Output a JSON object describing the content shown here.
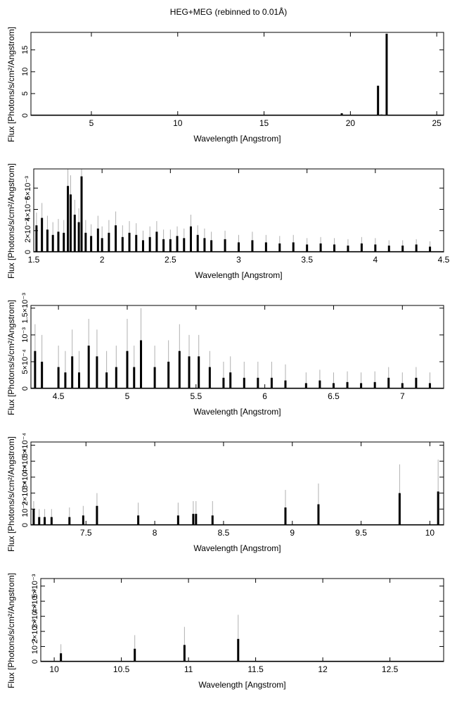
{
  "chart_data": [
    {
      "type": "bar",
      "title": "HEG+MEG (rebinned to 0.01Å)",
      "xlabel": "Wavelength [Angstrom]",
      "ylabel": "Flux [Photons/s/cm²/Angstrom]",
      "xlim": [
        1.5,
        25.4
      ],
      "ylim": [
        0,
        19
      ],
      "xticks": [
        5,
        10,
        15,
        20,
        25
      ],
      "yticks": [
        0,
        5,
        10,
        15
      ],
      "ytick_labels": [
        "0",
        "5",
        "10",
        "15"
      ],
      "x": [
        19.5,
        21.6,
        21.8,
        22.1
      ],
      "values": [
        0.5,
        6.8,
        0.2,
        18.7
      ],
      "errors": [
        0,
        0,
        0,
        0
      ]
    },
    {
      "type": "bar",
      "xlabel": "Wavelength [Angstrom]",
      "ylabel": "Flux [Photons/s/cm²/Angstrom]",
      "xlim": [
        1.5,
        4.5
      ],
      "ylim": [
        0,
        0.0078
      ],
      "xticks": [
        1.5,
        2,
        2.5,
        3,
        3.5,
        4,
        4.5
      ],
      "yticks": [
        0,
        0.002,
        0.004,
        0.006
      ],
      "ytick_labels": [
        "0",
        "2×10⁻³",
        "4×10⁻³",
        "6×10⁻³"
      ],
      "x": [
        1.52,
        1.56,
        1.6,
        1.64,
        1.68,
        1.72,
        1.75,
        1.77,
        1.8,
        1.83,
        1.85,
        1.88,
        1.92,
        1.97,
        2.0,
        2.05,
        2.1,
        2.15,
        2.2,
        2.25,
        2.3,
        2.35,
        2.4,
        2.45,
        2.5,
        2.55,
        2.6,
        2.65,
        2.7,
        2.75,
        2.8,
        2.9,
        3.0,
        3.1,
        3.2,
        3.3,
        3.4,
        3.5,
        3.6,
        3.7,
        3.8,
        3.9,
        4.0,
        4.1,
        4.2,
        4.3,
        4.4
      ],
      "values": [
        0.0025,
        0.0032,
        0.0021,
        0.0016,
        0.0019,
        0.0018,
        0.0062,
        0.0054,
        0.0035,
        0.0028,
        0.0071,
        0.0018,
        0.0015,
        0.0022,
        0.0013,
        0.0018,
        0.0025,
        0.0014,
        0.0018,
        0.0016,
        0.0011,
        0.0014,
        0.0019,
        0.0012,
        0.0012,
        0.0015,
        0.0013,
        0.0024,
        0.0016,
        0.0013,
        0.0011,
        0.0012,
        0.0009,
        0.0011,
        0.0009,
        0.0008,
        0.0009,
        0.0007,
        0.0008,
        0.0007,
        0.0006,
        0.0008,
        0.0007,
        0.0006,
        0.0006,
        0.0007,
        0.0005
      ],
      "errors": [
        0.0012,
        0.0014,
        0.0013,
        0.0012,
        0.0012,
        0.0012,
        0.0016,
        0.0018,
        0.0014,
        0.0013,
        0.0017,
        0.0012,
        0.0011,
        0.0012,
        0.0011,
        0.0012,
        0.0013,
        0.0011,
        0.0011,
        0.0011,
        0.0009,
        0.001,
        0.001,
        0.0009,
        0.0009,
        0.0009,
        0.0009,
        0.0011,
        0.0009,
        0.0009,
        0.0008,
        0.0008,
        0.0007,
        0.0008,
        0.0007,
        0.0007,
        0.0007,
        0.0006,
        0.0006,
        0.0006,
        0.0006,
        0.0006,
        0.0006,
        0.0005,
        0.0005,
        0.0005,
        0.0005
      ]
    },
    {
      "type": "bar",
      "xlabel": "Wavelength [Angstrom]",
      "ylabel": "Flux [Photons/s/cm²/Angstrom]",
      "xlim": [
        4.3,
        7.3
      ],
      "ylim": [
        0,
        0.00155
      ],
      "xticks": [
        4.5,
        5,
        5.5,
        6,
        6.5,
        7
      ],
      "yticks": [
        0,
        0.0005,
        0.001,
        0.0015
      ],
      "ytick_labels": [
        "0",
        "5×10⁻⁴",
        "10⁻³",
        "1.5×10⁻³"
      ],
      "x": [
        4.33,
        4.38,
        4.5,
        4.55,
        4.6,
        4.65,
        4.72,
        4.78,
        4.85,
        4.92,
        5.0,
        5.05,
        5.1,
        5.2,
        5.3,
        5.38,
        5.45,
        5.52,
        5.6,
        5.7,
        5.75,
        5.85,
        5.95,
        6.05,
        6.15,
        6.3,
        6.4,
        6.5,
        6.6,
        6.7,
        6.8,
        6.9,
        7.0,
        7.1,
        7.2
      ],
      "values": [
        0.0007,
        0.0005,
        0.0004,
        0.0003,
        0.0006,
        0.0003,
        0.0008,
        0.0006,
        0.0003,
        0.0004,
        0.0007,
        0.0004,
        0.0009,
        0.0004,
        0.0005,
        0.0007,
        0.0006,
        0.0006,
        0.0004,
        0.0002,
        0.0003,
        0.0002,
        0.0002,
        0.0002,
        0.00015,
        0.0001,
        0.00015,
        0.0001,
        0.00012,
        0.0001,
        0.00012,
        0.0002,
        0.0001,
        0.0002,
        0.0001
      ],
      "errors": [
        0.0005,
        0.0005,
        0.0004,
        0.0004,
        0.0005,
        0.0004,
        0.0005,
        0.0005,
        0.0004,
        0.0004,
        0.0006,
        0.0004,
        0.0006,
        0.0004,
        0.0004,
        0.0005,
        0.0004,
        0.0004,
        0.0003,
        0.0003,
        0.0003,
        0.0003,
        0.0003,
        0.0003,
        0.0003,
        0.0002,
        0.0002,
        0.0002,
        0.0002,
        0.0002,
        0.0002,
        0.0002,
        0.0002,
        0.0002,
        0.0002
      ]
    },
    {
      "type": "bar",
      "xlabel": "Wavelength [Angstrom]",
      "ylabel": "Flux [Photons/s/cm²/Angstrom]",
      "xlim": [
        7.1,
        10.1
      ],
      "ylim": [
        0,
        0.00052
      ],
      "xticks": [
        7.5,
        8,
        8.5,
        9,
        9.5,
        10
      ],
      "yticks": [
        0,
        0.0001,
        0.0002,
        0.0003,
        0.0004,
        0.0005
      ],
      "ytick_labels": [
        "0",
        "10⁻⁴",
        "2×10⁻⁴",
        "3×10⁻⁴",
        "4×10⁻⁴",
        "5×10⁻⁴"
      ],
      "x": [
        7.12,
        7.16,
        7.2,
        7.25,
        7.38,
        7.48,
        7.58,
        7.88,
        8.17,
        8.28,
        8.3,
        8.42,
        8.95,
        9.19,
        9.78,
        10.06
      ],
      "values": [
        0.0001,
        5e-05,
        5e-05,
        5e-05,
        5e-05,
        6e-05,
        0.00012,
        6e-05,
        6e-05,
        7e-05,
        7e-05,
        6e-05,
        0.00011,
        0.00013,
        0.0002,
        0.00021
      ],
      "errors": [
        5e-05,
        5e-05,
        5e-05,
        5e-05,
        6e-05,
        6e-05,
        8e-05,
        8e-05,
        8e-05,
        8e-05,
        8e-05,
        9e-05,
        0.00011,
        0.00013,
        0.00018,
        0.0002
      ]
    },
    {
      "type": "bar",
      "xlabel": "Wavelength [Angstrom]",
      "ylabel": "Flux [Photons/s/cm²/Angstrom]",
      "xlim": [
        9.9,
        12.9
      ],
      "ylim": [
        0,
        0.0055
      ],
      "xticks": [
        10,
        10.5,
        11,
        11.5,
        12,
        12.5
      ],
      "yticks": [
        0,
        0.001,
        0.002,
        0.003,
        0.004,
        0.005
      ],
      "ytick_labels": [
        "0",
        "10⁻³",
        "2×10⁻³",
        "3×10⁻³",
        "4×10⁻³",
        "5×10⁻³"
      ],
      "x": [
        10.05,
        10.6,
        10.97,
        11.37
      ],
      "values": [
        0.00055,
        0.00085,
        0.0011,
        0.0015
      ],
      "errors": [
        0.0006,
        0.0009,
        0.0012,
        0.0016
      ]
    }
  ]
}
